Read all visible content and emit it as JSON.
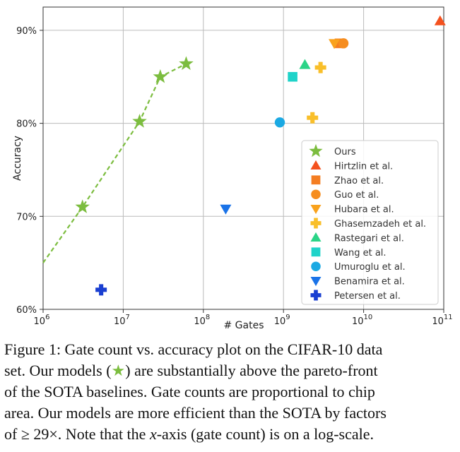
{
  "chart_data": {
    "type": "scatter",
    "x_scale": "log",
    "xlim": [
      1000000,
      100000000000
    ],
    "ylim": [
      60,
      92.5
    ],
    "xlabel": "# Gates",
    "ylabel": "Accuracy",
    "grid": true,
    "legend_position": "lower-right",
    "x_ticks": [
      {
        "value": 1000000,
        "base": "10",
        "exp": "6"
      },
      {
        "value": 10000000,
        "base": "10",
        "exp": "7"
      },
      {
        "value": 100000000,
        "base": "10",
        "exp": "8"
      },
      {
        "value": 1000000000,
        "base": "10",
        "exp": "9"
      },
      {
        "value": 10000000000,
        "base": "10",
        "exp": "10"
      },
      {
        "value": 100000000000,
        "base": "10",
        "exp": "11"
      }
    ],
    "y_ticks": [
      {
        "value": 60,
        "label": "60%"
      },
      {
        "value": 70,
        "label": "70%"
      },
      {
        "value": 80,
        "label": "80%"
      },
      {
        "value": 90,
        "label": "90%"
      }
    ],
    "series": [
      {
        "name": "Ours",
        "marker": "star",
        "color": "#7cbd3f",
        "line": "dashed",
        "points": [
          [
            3100000,
            71.0
          ],
          [
            16000000,
            80.2
          ],
          [
            29000000,
            85.0
          ],
          [
            61000000,
            86.4
          ]
        ],
        "line_points": [
          [
            1000000,
            65.0
          ],
          [
            3100000,
            71.0
          ],
          [
            16000000,
            80.2
          ],
          [
            29000000,
            85.0
          ],
          [
            61000000,
            86.4
          ]
        ]
      },
      {
        "name": "Hirtzlin et al.",
        "marker": "triangle-up",
        "color": "#f4511e",
        "points": [
          [
            90000000000,
            91.0
          ]
        ]
      },
      {
        "name": "Zhao et al.",
        "marker": "square",
        "color": "#f47d22",
        "points": [
          [
            5000000000,
            88.6
          ]
        ]
      },
      {
        "name": "Guo et al.",
        "marker": "circle",
        "color": "#f68d1f",
        "points": [
          [
            5600000000,
            88.6
          ]
        ]
      },
      {
        "name": "Hubara et al.",
        "marker": "triangle-down",
        "color": "#f9a21d",
        "points": [
          [
            4300000000,
            88.6
          ]
        ]
      },
      {
        "name": "Ghasemzadeh et al.",
        "marker": "plus",
        "color": "#f9bf2a",
        "points": [
          [
            2900000000,
            86.0
          ],
          [
            2300000000,
            80.6
          ]
        ]
      },
      {
        "name": "Rastegari et al.",
        "marker": "triangle-up",
        "color": "#2bd487",
        "points": [
          [
            1850000000,
            86.3
          ]
        ]
      },
      {
        "name": "Wang et al.",
        "marker": "square",
        "color": "#1fd3c9",
        "points": [
          [
            1300000000,
            85.0
          ]
        ]
      },
      {
        "name": "Umuroglu et al.",
        "marker": "circle",
        "color": "#1ba9e3",
        "points": [
          [
            900000000,
            80.1
          ]
        ]
      },
      {
        "name": "Benamira et al.",
        "marker": "triangle-down",
        "color": "#1a73e8",
        "points": [
          [
            190000000,
            70.8
          ]
        ]
      },
      {
        "name": "Petersen et al.",
        "marker": "plus",
        "color": "#1a3fd1",
        "points": [
          [
            5300000,
            62.1
          ]
        ]
      }
    ]
  },
  "caption": {
    "line1": "Figure 1: Gate count vs. accuracy plot on the CIFAR-10 data",
    "line2a": "set. Our models (",
    "line2_star": "★",
    "line2b": ") are substantially above the pareto-front",
    "line3": "of the SOTA baselines. Gate counts are proportional to chip",
    "line4": "area. Our models are more efficient than the SOTA by factors",
    "line5a": "of ≥ 29×. Note that the ",
    "line5_var": "x",
    "line5b": "-axis (gate count) is on a log-scale."
  }
}
